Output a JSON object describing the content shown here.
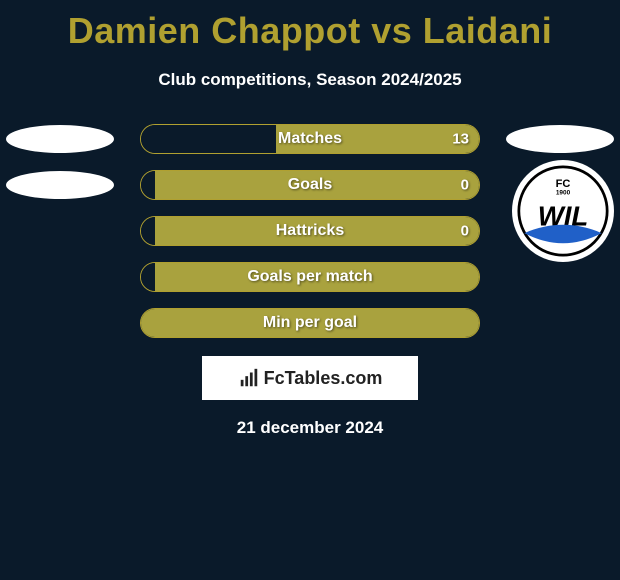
{
  "title": "Damien Chappot vs Laidani",
  "subtitle": "Club competitions, Season 2024/2025",
  "date": "21 december 2024",
  "footer_brand": "FcTables.com",
  "club_right": {
    "name": "FC Wil 1900",
    "text_top": "FC",
    "text_main": "WIL",
    "text_year": "1900",
    "circle_stroke": "#000000",
    "swoosh_color": "#2060c8",
    "bg": "#ffffff"
  },
  "colors": {
    "background": "#0a1a2a",
    "accent": "#b0a030",
    "bar_fill": "#a9a23e",
    "bar_empty": "#0a1a2a",
    "text": "#ffffff",
    "badge_bg": "#ffffff"
  },
  "rows": [
    {
      "label": "Matches",
      "left_value": "",
      "right_value": "13",
      "left_pct": 40,
      "right_pct": 60,
      "show_left_badge": true,
      "show_right_badge": true
    },
    {
      "label": "Goals",
      "left_value": "",
      "right_value": "0",
      "left_pct": 4,
      "right_pct": 96,
      "show_left_badge": true,
      "show_right_badge": false
    },
    {
      "label": "Hattricks",
      "left_value": "",
      "right_value": "0",
      "left_pct": 4,
      "right_pct": 96,
      "show_left_badge": false,
      "show_right_badge": false
    },
    {
      "label": "Goals per match",
      "left_value": "",
      "right_value": "",
      "left_pct": 4,
      "right_pct": 96,
      "show_left_badge": false,
      "show_right_badge": false
    },
    {
      "label": "Min per goal",
      "left_value": "",
      "right_value": "",
      "left_pct": 100,
      "right_pct": 0,
      "show_left_badge": false,
      "show_right_badge": false
    }
  ]
}
